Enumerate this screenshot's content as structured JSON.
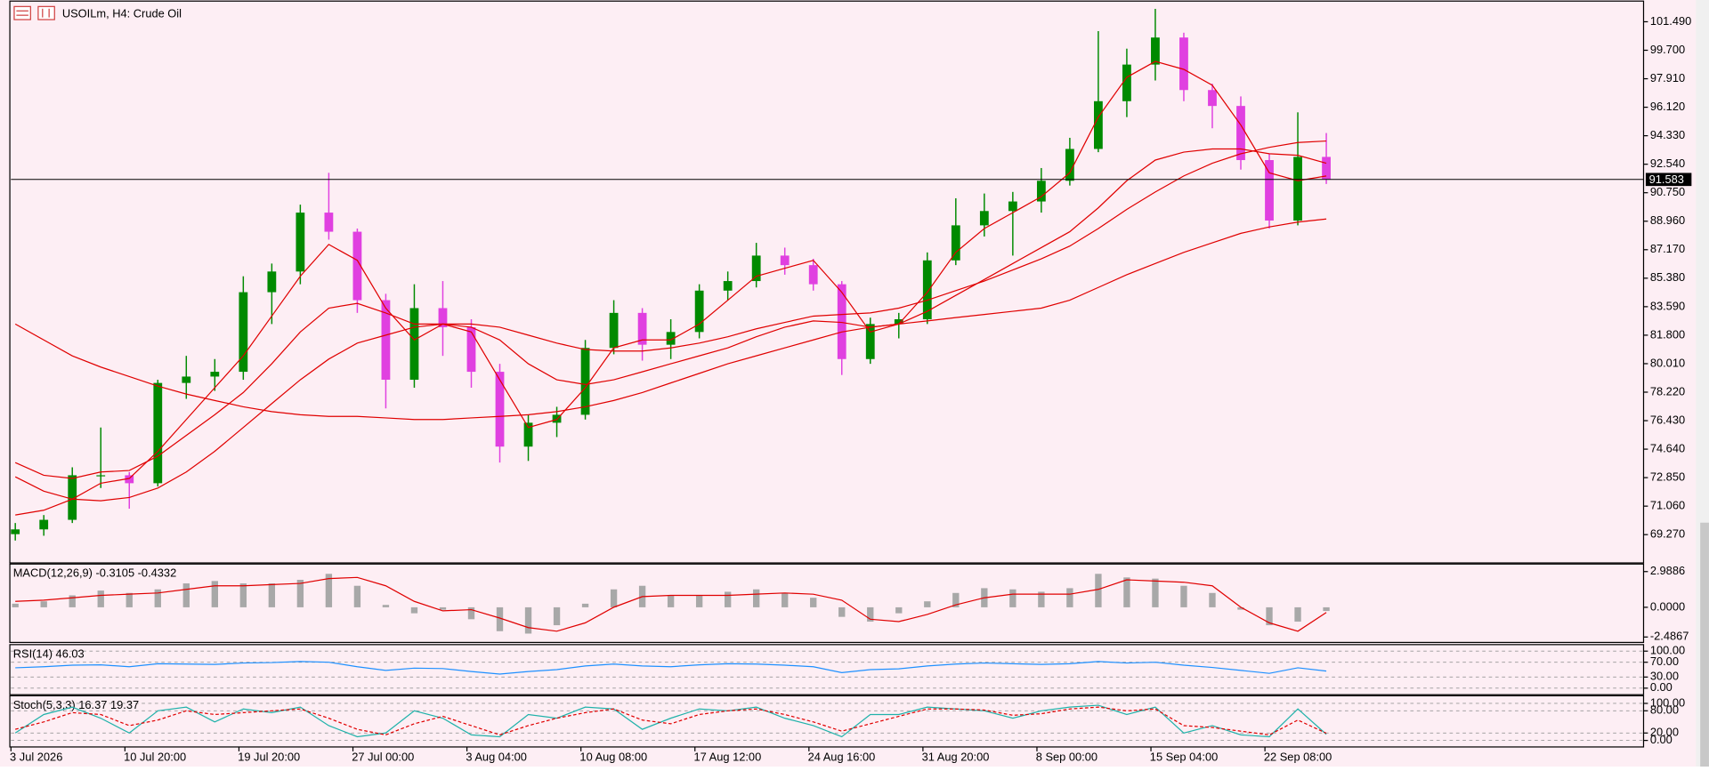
{
  "chart_data": [
    {
      "type": "candlestick",
      "title": "USOILm, H4:  Crude Oil",
      "categories": [
        "3 Jul 2026",
        null,
        null,
        null,
        "10 Jul 20:00",
        null,
        null,
        null,
        "19 Jul 20:00",
        null,
        null,
        null,
        "27 Jul 00:00",
        null,
        null,
        null,
        "3 Aug 04:00",
        null,
        null,
        null,
        "10 Aug 08:00",
        null,
        null,
        null,
        "17 Aug 12:00",
        null,
        null,
        null,
        "24 Aug 16:00",
        null,
        null,
        null,
        "31 Aug 20:00",
        null,
        null,
        null,
        "8 Sep 00:00",
        null,
        null,
        null,
        "15 Sep 04:00",
        null,
        null,
        null,
        "22 Sep 08:00",
        null,
        null
      ],
      "open": [
        69.3,
        69.6,
        70.2,
        73.0,
        73.0,
        72.5,
        78.8,
        79.2,
        79.5,
        84.5,
        85.8,
        89.5,
        88.3,
        84.0,
        79.0,
        83.5,
        82.3,
        79.5,
        74.8,
        76.3,
        76.8,
        81.0,
        83.2,
        81.2,
        82.0,
        84.6,
        85.2,
        86.8,
        86.2,
        85.0,
        80.3,
        82.5,
        82.8,
        86.5,
        88.7,
        89.6,
        90.2,
        91.5,
        93.5,
        96.5,
        98.8,
        100.5,
        97.2,
        96.2,
        92.8,
        89.0,
        93.0
      ],
      "high": [
        70.0,
        70.5,
        73.5,
        76.0,
        73.2,
        79.0,
        80.5,
        80.3,
        85.5,
        86.3,
        90.0,
        92.0,
        88.5,
        84.4,
        85.0,
        85.2,
        82.8,
        80.0,
        76.8,
        77.3,
        81.5,
        84.0,
        83.5,
        82.8,
        85.0,
        85.8,
        87.6,
        87.3,
        86.6,
        85.2,
        82.9,
        83.2,
        87.0,
        90.4,
        90.7,
        90.8,
        92.3,
        94.2,
        100.9,
        99.8,
        102.3,
        100.8,
        97.6,
        96.8,
        93.2,
        95.8,
        94.5
      ],
      "low": [
        68.9,
        69.2,
        70.0,
        72.2,
        70.9,
        72.3,
        77.8,
        78.3,
        79.0,
        82.5,
        85.0,
        87.8,
        83.2,
        77.2,
        78.5,
        80.5,
        78.5,
        73.8,
        73.9,
        75.4,
        76.5,
        80.6,
        80.2,
        80.3,
        81.6,
        84.0,
        84.8,
        85.6,
        84.6,
        79.3,
        80.0,
        81.6,
        82.5,
        86.2,
        88.0,
        86.8,
        89.5,
        91.2,
        93.3,
        95.5,
        97.8,
        96.5,
        94.8,
        92.2,
        88.5,
        88.7,
        91.3
      ],
      "close": [
        69.6,
        70.2,
        73.0,
        73.0,
        72.5,
        78.8,
        79.2,
        79.5,
        84.5,
        85.8,
        89.5,
        88.3,
        84.0,
        79.0,
        83.5,
        82.3,
        79.5,
        74.8,
        76.3,
        76.8,
        81.0,
        83.2,
        81.2,
        82.0,
        84.6,
        85.2,
        86.8,
        86.2,
        85.0,
        80.3,
        82.5,
        82.8,
        86.5,
        88.7,
        89.6,
        90.2,
        91.5,
        93.5,
        96.5,
        98.8,
        100.5,
        97.2,
        96.2,
        92.8,
        89.0,
        93.0,
        91.6
      ],
      "up_color": "#008a00",
      "down_color": "#e040e0",
      "series": [
        {
          "color": "#e00000",
          "values": [
            70.5,
            70.8,
            71.5,
            72.5,
            72.8,
            74.5,
            76.5,
            78.5,
            80.5,
            83,
            85.5,
            87.5,
            86.5,
            83.5,
            81.5,
            82.5,
            82,
            79,
            76,
            76.5,
            78.5,
            81,
            81.5,
            81.5,
            82.5,
            84,
            85.5,
            86,
            86.5,
            84.5,
            82,
            82.5,
            84.5,
            87,
            88.5,
            89.5,
            90.5,
            92,
            95.5,
            98,
            99,
            98.5,
            97.5,
            95,
            92,
            91.5,
            91.8
          ]
        },
        {
          "color": "#e00000",
          "values": [
            73.8,
            73.0,
            72.8,
            73.2,
            73.3,
            74.2,
            75.5,
            76.8,
            78.2,
            80,
            82,
            83.5,
            83.8,
            83.2,
            82.5,
            82.5,
            82.3,
            81.5,
            80,
            79,
            78.7,
            79,
            79.5,
            80,
            80.5,
            81,
            81.7,
            82.3,
            82.7,
            82.6,
            82.3,
            82.5,
            83.3,
            84.3,
            85.3,
            86.3,
            87.3,
            88.3,
            89.8,
            91.5,
            92.8,
            93.3,
            93.5,
            93.5,
            93.2,
            93.1,
            92.6
          ]
        },
        {
          "color": "#e00000",
          "values": [
            72.9,
            72.0,
            71.5,
            71.4,
            71.6,
            72.2,
            73.2,
            74.5,
            76,
            77.5,
            79,
            80.3,
            81.3,
            81.8,
            82.3,
            82.5,
            82.5,
            82.3,
            81.8,
            81.3,
            80.9,
            80.8,
            80.8,
            81,
            81.3,
            81.7,
            82.2,
            82.6,
            83,
            83.1,
            83.2,
            83.5,
            84,
            84.6,
            85.2,
            85.9,
            86.6,
            87.4,
            88.5,
            89.7,
            90.8,
            91.8,
            92.6,
            93.2,
            93.6,
            93.9,
            94.0
          ]
        },
        {
          "color": "#e00000",
          "values": [
            82.5,
            81.5,
            80.5,
            79.8,
            79.2,
            78.6,
            78.1,
            77.7,
            77.3,
            77,
            76.8,
            76.7,
            76.7,
            76.6,
            76.5,
            76.5,
            76.6,
            76.7,
            76.8,
            77,
            77.3,
            77.7,
            78.2,
            78.8,
            79.4,
            80,
            80.5,
            81,
            81.5,
            82,
            82.3,
            82.5,
            82.7,
            82.9,
            83.1,
            83.3,
            83.5,
            84,
            84.8,
            85.6,
            86.3,
            87,
            87.6,
            88.2,
            88.6,
            88.9,
            89.1
          ]
        }
      ],
      "current_price": {
        "value": 91.583,
        "label": "91.583"
      },
      "ylim": [
        67.56,
        102.72
      ],
      "yticks": [
        {
          "value": 101.49,
          "label": "101.490"
        },
        {
          "value": 99.7,
          "label": "99.700"
        },
        {
          "value": 97.91,
          "label": "97.910"
        },
        {
          "value": 96.12,
          "label": "96.120"
        },
        {
          "value": 94.33,
          "label": "94.330"
        },
        {
          "value": 92.54,
          "label": "92.540"
        },
        {
          "value": 90.75,
          "label": "90.750"
        },
        {
          "value": 88.96,
          "label": "88.960"
        },
        {
          "value": 87.17,
          "label": "87.170"
        },
        {
          "value": 85.38,
          "label": "85.380"
        },
        {
          "value": 83.59,
          "label": "83.590"
        },
        {
          "value": 81.8,
          "label": "81.800"
        },
        {
          "value": 80.01,
          "label": "80.010"
        },
        {
          "value": 78.22,
          "label": "78.220"
        },
        {
          "value": 76.43,
          "label": "76.430"
        },
        {
          "value": 74.64,
          "label": "74.640"
        },
        {
          "value": 72.85,
          "label": "72.850"
        },
        {
          "value": 71.06,
          "label": "71.060"
        },
        {
          "value": 69.27,
          "label": "69.270"
        }
      ]
    },
    {
      "type": "macd",
      "title": "MACD(12,26,9) -0.3105 -0.4332",
      "values": [
        0.3,
        0.5,
        1.0,
        1.4,
        1.2,
        1.5,
        2.0,
        2.2,
        2.0,
        2.0,
        2.3,
        2.8,
        1.8,
        0.2,
        -0.5,
        -0.2,
        -1.0,
        -2.0,
        -2.2,
        -1.5,
        0.3,
        1.5,
        1.8,
        1.0,
        1.0,
        1.3,
        1.5,
        1.2,
        0.8,
        -0.8,
        -1.2,
        -0.5,
        0.5,
        1.2,
        1.6,
        1.5,
        1.3,
        1.6,
        2.8,
        2.5,
        2.4,
        1.8,
        1.2,
        -0.2,
        -1.5,
        -1.2,
        -0.3105
      ],
      "histogram_color": "#a8a8a8",
      "signal": {
        "color": "#e00000",
        "values": [
          0.5,
          0.6,
          0.8,
          1.0,
          1.1,
          1.2,
          1.5,
          1.8,
          1.8,
          1.9,
          2.0,
          2.4,
          2.5,
          1.8,
          0.5,
          -0.3,
          -0.2,
          -0.9,
          -1.7,
          -2.0,
          -1.3,
          0,
          0.9,
          1.0,
          1.0,
          1.0,
          1.1,
          1.2,
          1.1,
          0.6,
          -1.0,
          -1.2,
          -0.6,
          0.2,
          0.8,
          1.1,
          1.1,
          1.1,
          1.5,
          2.3,
          2.2,
          2.1,
          1.8,
          0.0,
          -1.3,
          -2.0,
          -0.4332
        ]
      },
      "ylim": [
        -2.94,
        3.53
      ],
      "yticks": [
        {
          "value": 2.9886,
          "label": "2.9886"
        },
        {
          "value": 0,
          "label": "0.0000"
        },
        {
          "value": -2.4867,
          "label": "-2.4867"
        }
      ]
    },
    {
      "type": "line",
      "title": "RSI(14) 46.03",
      "values": [
        55,
        58,
        62,
        63,
        58,
        66,
        65,
        64,
        68,
        69,
        72,
        70,
        58,
        48,
        54,
        53,
        45,
        38,
        45,
        50,
        60,
        65,
        60,
        58,
        63,
        66,
        65,
        62,
        58,
        42,
        50,
        52,
        60,
        65,
        68,
        66,
        64,
        66,
        72,
        68,
        70,
        62,
        56,
        48,
        40,
        55,
        46.03
      ],
      "color": "#1e90ff",
      "grid": true,
      "ylim": [
        -14.7,
        114.7
      ],
      "yticks": [
        {
          "value": 100,
          "label": "100.00"
        },
        {
          "value": 70,
          "label": "70.00"
        },
        {
          "value": 30,
          "label": "30.00"
        },
        {
          "value": 0,
          "label": "0.00"
        }
      ]
    },
    {
      "type": "stochastic",
      "title": "Stoch(5,3,3) 16.37 19.37",
      "series": [
        {
          "color": "#20b2aa",
          "dashed": false,
          "values": [
            20,
            70,
            90,
            60,
            20,
            80,
            90,
            50,
            85,
            75,
            90,
            40,
            10,
            20,
            80,
            60,
            15,
            10,
            70,
            60,
            90,
            85,
            30,
            60,
            85,
            80,
            90,
            60,
            40,
            10,
            70,
            70,
            90,
            85,
            80,
            60,
            80,
            90,
            95,
            70,
            90,
            20,
            40,
            15,
            10,
            85,
            16.37
          ]
        },
        {
          "color": "#e00000",
          "dashed": true,
          "values": [
            30,
            50,
            75,
            70,
            40,
            55,
            80,
            70,
            75,
            80,
            85,
            60,
            30,
            15,
            45,
            65,
            40,
            15,
            40,
            60,
            75,
            85,
            55,
            45,
            70,
            80,
            85,
            70,
            50,
            25,
            45,
            65,
            85,
            85,
            82,
            68,
            72,
            85,
            90,
            80,
            85,
            40,
            35,
            25,
            15,
            55,
            19.37
          ]
        }
      ],
      "grid": true,
      "ylim": [
        -14.7,
        117.6
      ],
      "yticks": [
        {
          "value": 100,
          "label": "100.00"
        },
        {
          "value": 80,
          "label": "80.00"
        },
        {
          "value": 20,
          "label": "20.00"
        },
        {
          "value": 0,
          "label": "0.00"
        }
      ]
    }
  ]
}
